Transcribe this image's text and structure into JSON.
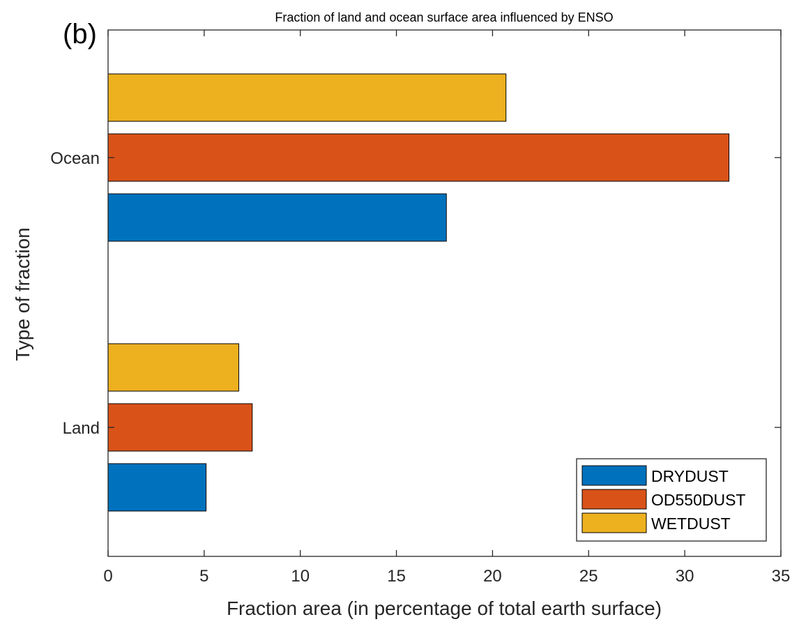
{
  "chart_data": {
    "type": "bar",
    "orientation": "horizontal",
    "panel_label": "(b)",
    "title": "Fraction of land and ocean surface area influenced by ENSO",
    "xlabel": "Fraction area (in percentage of total earth surface)",
    "ylabel": "Type of fraction",
    "categories": [
      "Land",
      "Ocean"
    ],
    "xlim": [
      0,
      35
    ],
    "x_ticks": [
      "0",
      "5",
      "10",
      "15",
      "20",
      "25",
      "30",
      "35"
    ],
    "series": [
      {
        "name": "DRYDUST",
        "color": "#0072BD",
        "values": [
          5.1,
          17.6
        ]
      },
      {
        "name": "OD550DUST",
        "color": "#D95319",
        "values": [
          7.5,
          32.3
        ]
      },
      {
        "name": "WETDUST",
        "color": "#EDB120",
        "values": [
          6.8,
          20.7
        ]
      }
    ],
    "legend_position": "bottom-right",
    "grid": false
  }
}
